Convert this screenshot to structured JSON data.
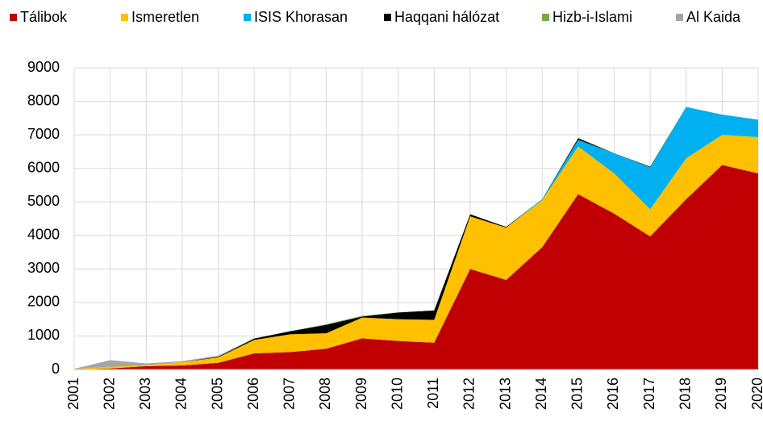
{
  "chart_data": {
    "type": "stacked_area",
    "categories": [
      "2001",
      "2002",
      "2003",
      "2004",
      "2005",
      "2006",
      "2007",
      "2008",
      "2009",
      "2010",
      "2011",
      "2012",
      "2013",
      "2014",
      "2015",
      "2016",
      "2017",
      "2018",
      "2019",
      "2020"
    ],
    "series": [
      {
        "name": "Tálibok",
        "color": "#c00000",
        "values": [
          0,
          30,
          100,
          120,
          200,
          480,
          520,
          620,
          930,
          850,
          800,
          3000,
          2670,
          3650,
          5230,
          4650,
          3970,
          5080,
          6100,
          5850
        ]
      },
      {
        "name": "Ismeretlen",
        "color": "#ffc000",
        "values": [
          20,
          50,
          30,
          100,
          160,
          400,
          530,
          460,
          620,
          650,
          680,
          1570,
          1560,
          1400,
          1420,
          1200,
          810,
          1220,
          900,
          1080
        ]
      },
      {
        "name": "ISIS Khorasan",
        "color": "#00b0f0",
        "values": [
          0,
          0,
          0,
          0,
          0,
          0,
          0,
          0,
          0,
          0,
          0,
          0,
          0,
          30,
          200,
          600,
          1250,
          1530,
          600,
          520
        ]
      },
      {
        "name": "Haqqani hálózat",
        "color": "#000000",
        "values": [
          0,
          0,
          0,
          0,
          20,
          40,
          90,
          250,
          30,
          200,
          280,
          60,
          20,
          0,
          50,
          0,
          20,
          0,
          0,
          0
        ]
      },
      {
        "name": "Hizb-i-Islami",
        "color": "#70ad47",
        "values": [
          0,
          0,
          0,
          0,
          5,
          5,
          5,
          20,
          20,
          5,
          5,
          5,
          5,
          5,
          5,
          5,
          5,
          5,
          5,
          5
        ]
      },
      {
        "name": "Al Kaida",
        "color": "#a5a5a5",
        "values": [
          0,
          200,
          50,
          30,
          30,
          10,
          0,
          0,
          0,
          0,
          0,
          0,
          0,
          0,
          0,
          0,
          0,
          0,
          0,
          0
        ]
      }
    ],
    "ylim": [
      0,
      9000
    ],
    "yticks": [
      0,
      1000,
      2000,
      3000,
      4000,
      5000,
      6000,
      7000,
      8000,
      9000
    ],
    "grid": true,
    "legend": "top"
  }
}
